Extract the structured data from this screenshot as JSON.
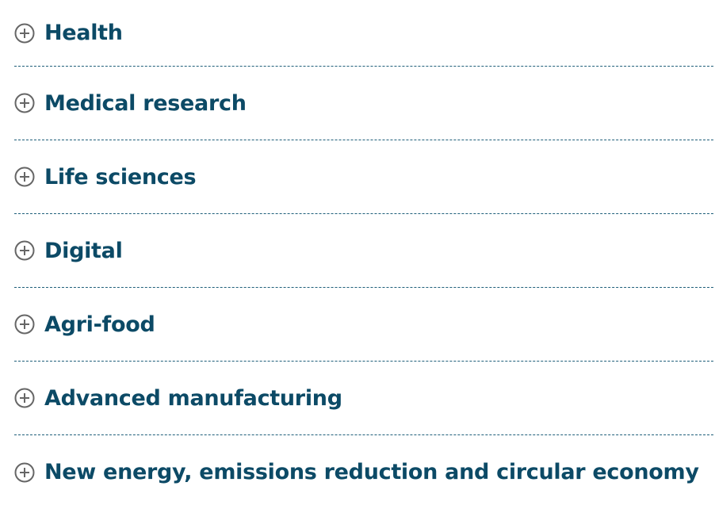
{
  "accordion": {
    "items": [
      {
        "label": "Health"
      },
      {
        "label": "Medical research"
      },
      {
        "label": "Life sciences"
      },
      {
        "label": "Digital"
      },
      {
        "label": "Agri-food"
      },
      {
        "label": "Advanced manufacturing"
      },
      {
        "label": "New energy, emissions reduction and circular economy"
      }
    ]
  }
}
